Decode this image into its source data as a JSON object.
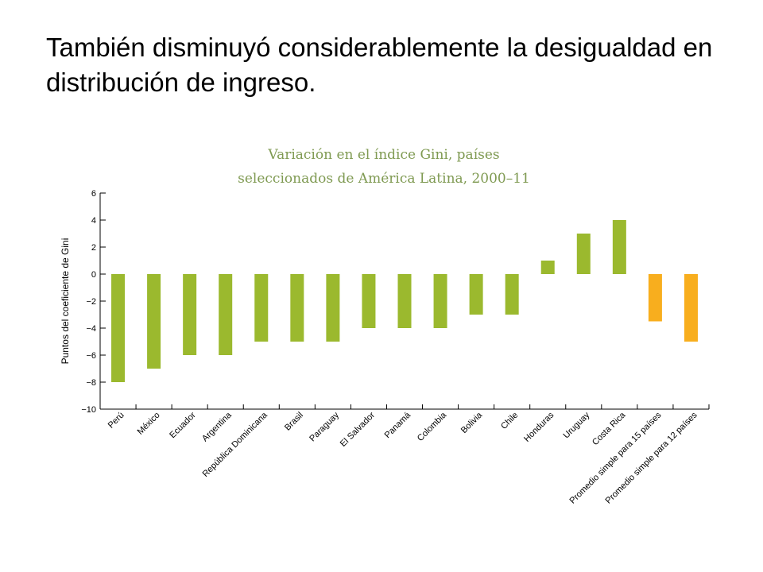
{
  "slide": {
    "title": "También disminuyó considerablemente la desigualdad en distribución de ingreso."
  },
  "colors": {
    "country_bar": "#9bb92e",
    "average_bar": "#f8ae1e",
    "title_text": "#7f9a52"
  },
  "chart_data": {
    "type": "bar",
    "title_lines": [
      "Variación en el índice Gini, países",
      "seleccionados de América Latina, 2000–11"
    ],
    "xlabel": "",
    "ylabel": "Puntos del coeficiente de Gini",
    "ylim": [
      -10,
      6
    ],
    "yticks": [
      6,
      4,
      2,
      0,
      -2,
      -4,
      -6,
      -8,
      -10
    ],
    "ytick_labels": [
      "6",
      "4",
      "2",
      "0",
      "−2",
      "−4",
      "−6",
      "−8",
      "−10"
    ],
    "categories": [
      "Perú",
      "México",
      "Ecuador",
      "Argentina",
      "República Dominicana",
      "Brasil",
      "Paraguay",
      "El Salvador",
      "Panamá",
      "Colombia",
      "Bolivia",
      "Chile",
      "Honduras",
      "Uruguay",
      "Costa Rica",
      "Promedio simple para 15 países",
      "Promedio simple para 12 países"
    ],
    "values": [
      -8,
      -7,
      -6,
      -6,
      -5,
      -5,
      -5,
      -4,
      -4,
      -4,
      -3,
      -3,
      1,
      3,
      4,
      -3.5,
      -5
    ],
    "highlight": [
      false,
      false,
      false,
      false,
      false,
      false,
      false,
      false,
      false,
      false,
      false,
      false,
      false,
      false,
      false,
      true,
      true
    ],
    "grid": false,
    "legend": "none"
  }
}
